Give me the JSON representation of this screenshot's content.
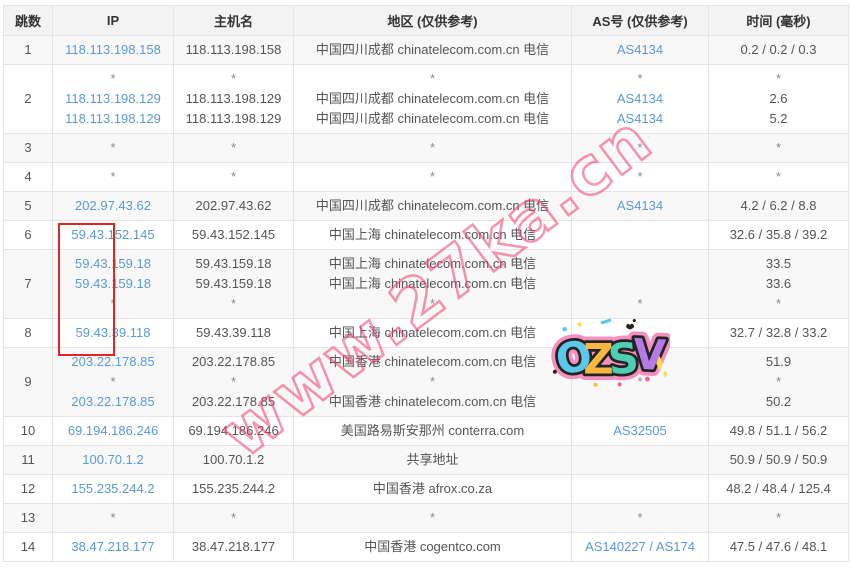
{
  "table": {
    "columns": [
      {
        "key": "hop",
        "label": "跳数"
      },
      {
        "key": "ip",
        "label": "IP"
      },
      {
        "key": "host",
        "label": "主机名"
      },
      {
        "key": "region",
        "label": "地区 (仅供参考)"
      },
      {
        "key": "as",
        "label": "AS号 (仅供参考)"
      },
      {
        "key": "time",
        "label": "时间 (毫秒)"
      }
    ],
    "rows": [
      {
        "hop": "1",
        "ip": [
          "118.113.198.158"
        ],
        "host": [
          "118.113.198.158"
        ],
        "region": [
          "中国四川成都 chinatelecom.com.cn 电信"
        ],
        "as": [
          "AS4134"
        ],
        "time": [
          "0.2 / 0.2 / 0.3"
        ]
      },
      {
        "hop": "2",
        "ip": [
          "*",
          "118.113.198.129",
          "118.113.198.129"
        ],
        "host": [
          "*",
          "118.113.198.129",
          "118.113.198.129"
        ],
        "region": [
          "*",
          "中国四川成都 chinatelecom.com.cn 电信",
          "中国四川成都 chinatelecom.com.cn 电信"
        ],
        "as": [
          "*",
          "AS4134",
          "AS4134"
        ],
        "time": [
          "*",
          "2.6",
          "5.2"
        ]
      },
      {
        "hop": "3",
        "ip": [
          "*"
        ],
        "host": [
          "*"
        ],
        "region": [
          "*"
        ],
        "as": [
          "*"
        ],
        "time": [
          "*"
        ]
      },
      {
        "hop": "4",
        "ip": [
          "*"
        ],
        "host": [
          "*"
        ],
        "region": [
          "*"
        ],
        "as": [
          "*"
        ],
        "time": [
          "*"
        ]
      },
      {
        "hop": "5",
        "ip": [
          "202.97.43.62"
        ],
        "host": [
          "202.97.43.62"
        ],
        "region": [
          "中国四川成都 chinatelecom.com.cn 电信"
        ],
        "as": [
          "AS4134"
        ],
        "time": [
          "4.2 / 6.2 / 8.8"
        ]
      },
      {
        "hop": "6",
        "ip": [
          "59.43.152.145"
        ],
        "host": [
          "59.43.152.145"
        ],
        "region": [
          "中国上海 chinatelecom.com.cn 电信"
        ],
        "as": [
          ""
        ],
        "time": [
          "32.6 / 35.8 / 39.2"
        ]
      },
      {
        "hop": "7",
        "ip": [
          "59.43.159.18",
          "59.43.159.18",
          "*"
        ],
        "host": [
          "59.43.159.18",
          "59.43.159.18",
          "*"
        ],
        "region": [
          "中国上海 chinatelecom.com.cn 电信",
          "中国上海 chinatelecom.com.cn 电信",
          "*"
        ],
        "as": [
          "",
          "",
          "*"
        ],
        "time": [
          "33.5",
          "33.6",
          "*"
        ]
      },
      {
        "hop": "8",
        "ip": [
          "59.43.39.118"
        ],
        "host": [
          "59.43.39.118"
        ],
        "region": [
          "中国上海 chinatelecom.com.cn 电信"
        ],
        "as": [
          ""
        ],
        "time": [
          "32.7 / 32.8 / 33.2"
        ]
      },
      {
        "hop": "9",
        "ip": [
          "203.22.178.85",
          "*",
          "203.22.178.85"
        ],
        "host": [
          "203.22.178.85",
          "*",
          "203.22.178.85"
        ],
        "region": [
          "中国香港 chinatelecom.com.cn 电信",
          "*",
          "中国香港 chinatelecom.com.cn 电信"
        ],
        "as": [
          "",
          "*",
          ""
        ],
        "time": [
          "51.9",
          "*",
          "50.2"
        ]
      },
      {
        "hop": "10",
        "ip": [
          "69.194.186.246"
        ],
        "host": [
          "69.194.186.246"
        ],
        "region": [
          "美国路易斯安那州 conterra.com"
        ],
        "as": [
          "AS32505"
        ],
        "time": [
          "49.8 / 51.1 / 56.2"
        ]
      },
      {
        "hop": "11",
        "ip": [
          "100.70.1.2"
        ],
        "host": [
          "100.70.1.2"
        ],
        "region": [
          "共享地址"
        ],
        "as": [
          ""
        ],
        "time": [
          "50.9 / 50.9 / 50.9"
        ]
      },
      {
        "hop": "12",
        "ip": [
          "155.235.244.2"
        ],
        "host": [
          "155.235.244.2"
        ],
        "region": [
          "中国香港 afrox.co.za"
        ],
        "as": [
          ""
        ],
        "time": [
          "48.2 / 48.4 / 125.4"
        ]
      },
      {
        "hop": "13",
        "ip": [
          "*"
        ],
        "host": [
          "*"
        ],
        "region": [
          "*"
        ],
        "as": [
          "*"
        ],
        "time": [
          "*"
        ]
      },
      {
        "hop": "14",
        "ip": [
          "38.47.218.177"
        ],
        "host": [
          "38.47.218.177"
        ],
        "region": [
          "中国香港 cogentco.com"
        ],
        "as": [
          "AS140227 / AS174"
        ],
        "time": [
          "47.5 / 47.6 / 48.1"
        ]
      }
    ]
  },
  "watermark": {
    "text": "www.27ka.cn",
    "color": "#ee3e69"
  },
  "sticker": {
    "text": "OZSV",
    "letter_colors": [
      "#5bc8ea",
      "#f8b73e",
      "#4ecfb4",
      "#b57ae6"
    ],
    "outline_color": "#f590be",
    "ink_color": "#242424",
    "sparkle_color": "#ffd84d"
  },
  "annotations": {
    "red_box": {
      "color": "#e02525",
      "marked_column": "ip",
      "marked_hops": "6-8"
    }
  },
  "colors": {
    "link": "#5b9ad5",
    "header_bg": "#f3f3f3",
    "odd_row_bg": "#f8f8f8",
    "border": "#e4e4e4",
    "text": "#555555"
  }
}
